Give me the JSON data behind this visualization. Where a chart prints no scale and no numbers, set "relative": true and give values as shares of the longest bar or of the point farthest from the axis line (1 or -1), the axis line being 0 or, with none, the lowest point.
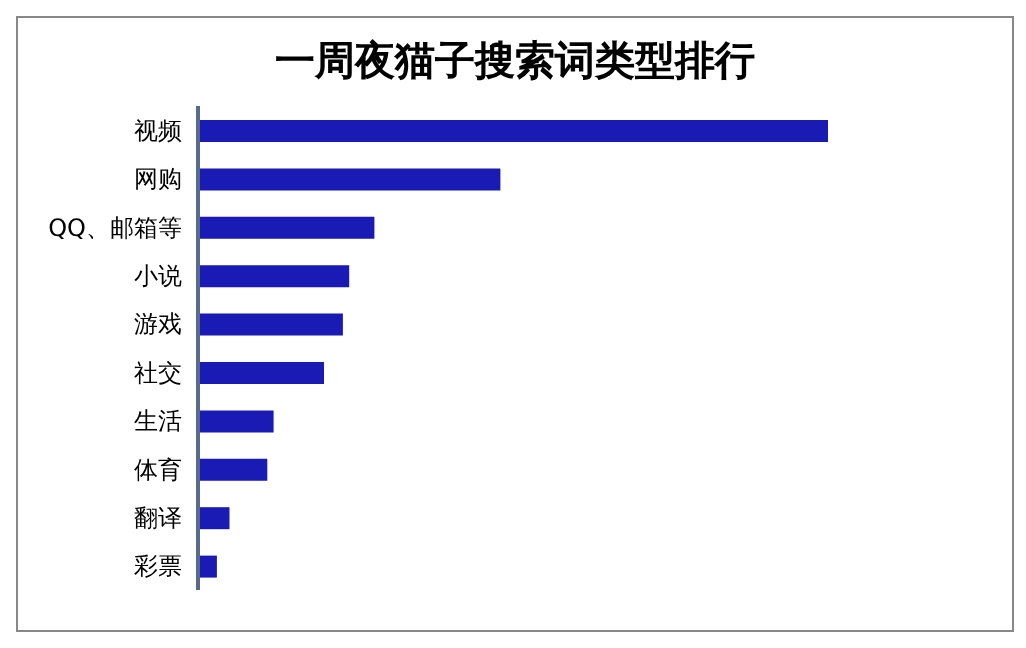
{
  "chart_data": {
    "type": "bar",
    "orientation": "horizontal",
    "relative": true,
    "title": "一周夜猫子搜索词类型排行",
    "categories": [
      "视频",
      "网购",
      "QQ、邮箱等",
      "小说",
      "游戏",
      "社交",
      "生活",
      "体育",
      "翻译",
      "彩票"
    ],
    "values": [
      1,
      0.48,
      0.28,
      0.24,
      0.23,
      0.2,
      0.12,
      0.11,
      0.05,
      0.03
    ],
    "color": "#1a1ab4",
    "grid": false,
    "legend": false
  }
}
